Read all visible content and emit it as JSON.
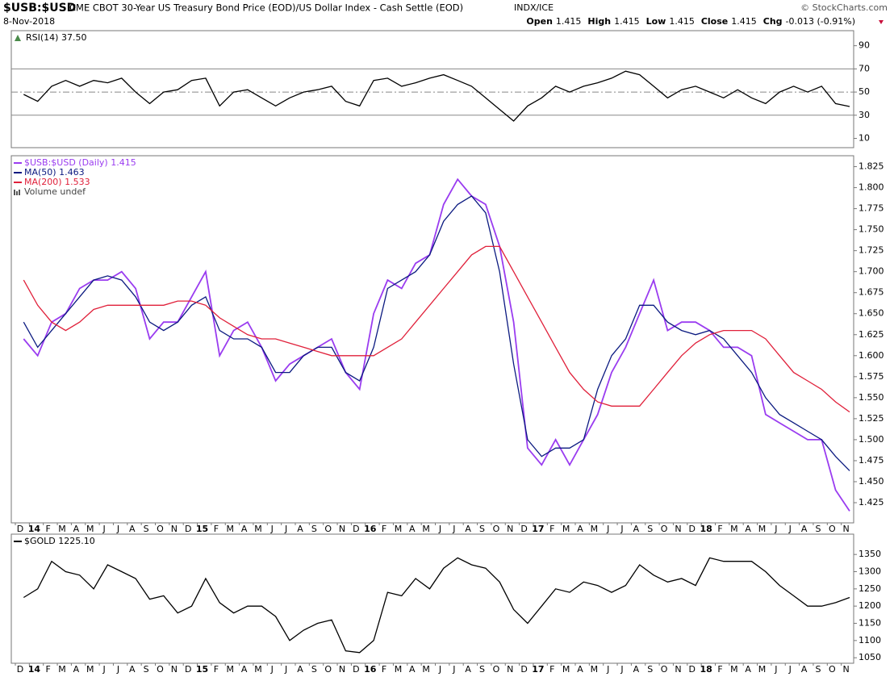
{
  "header": {
    "symbol": "$USB:$USD",
    "description": "CME CBOT 30-Year US Treasury Bond Price (EOD)/US Dollar Index - Cash Settle (EOD)",
    "exchange": "INDX/ICE",
    "source": "© StockCharts.com",
    "date": "8-Nov-2018",
    "quote": [
      {
        "label": "Open",
        "value": 1.415
      },
      {
        "label": "High",
        "value": 1.415
      },
      {
        "label": "Low",
        "value": 1.415
      },
      {
        "label": "Close",
        "value": 1.415
      },
      {
        "label": "Chg",
        "value": "-0.013 (-0.91%)"
      }
    ]
  },
  "chart_data": [
    {
      "type": "line",
      "title": "RSI(14) 37.50",
      "ylim": [
        2,
        103
      ],
      "yticks": [
        10,
        30,
        50,
        70,
        90
      ],
      "reference_lines": [
        30,
        50,
        70
      ],
      "series": [
        {
          "name": "RSI(14)",
          "color": "#000000",
          "values": [
            48,
            42,
            55,
            60,
            55,
            60,
            58,
            62,
            50,
            40,
            50,
            52,
            60,
            62,
            38,
            50,
            52,
            45,
            38,
            45,
            50,
            52,
            55,
            42,
            38,
            60,
            62,
            55,
            58,
            62,
            65,
            60,
            55,
            45,
            35,
            25,
            38,
            45,
            55,
            50,
            55,
            58,
            62,
            68,
            65,
            55,
            45,
            52,
            55,
            50,
            45,
            52,
            45,
            40,
            50,
            55,
            50,
            55,
            40,
            37.5
          ]
        }
      ]
    },
    {
      "type": "line",
      "ylim": [
        1.401,
        1.838
      ],
      "yticks": [
        1.425,
        {
          "value": 1.45,
          "label": "1.450"
        },
        1.475,
        {
          "value": 1.5,
          "label": "1.500"
        },
        1.525,
        {
          "value": 1.55,
          "label": "1.550"
        },
        1.575,
        {
          "value": 1.6,
          "label": "1.600"
        },
        1.625,
        {
          "value": 1.65,
          "label": "1.650"
        },
        1.675,
        {
          "value": 1.7,
          "label": "1.700"
        },
        1.725,
        {
          "value": 1.75,
          "label": "1.750"
        },
        1.775,
        {
          "value": 1.8,
          "label": "1.800"
        },
        1.825
      ],
      "categories": [
        "D",
        "14",
        "F",
        "M",
        "A",
        "M",
        "J",
        "J",
        "A",
        "S",
        "O",
        "N",
        "D",
        "15",
        "F",
        "M",
        "A",
        "M",
        "J",
        "J",
        "A",
        "S",
        "O",
        "N",
        "D",
        "16",
        "F",
        "M",
        "A",
        "M",
        "J",
        "J",
        "A",
        "S",
        "O",
        "N",
        "D",
        "17",
        "F",
        "M",
        "A",
        "M",
        "J",
        "J",
        "A",
        "S",
        "O",
        "N",
        "D",
        "18",
        "F",
        "M",
        "A",
        "M",
        "J",
        "J",
        "A",
        "S",
        "O",
        "N"
      ],
      "legend_extra": "Volume undef",
      "series": [
        {
          "name": "$USB:$USD (Daily) 1.415",
          "color": "#9a3cf0",
          "values": [
            1.62,
            1.6,
            1.64,
            1.65,
            1.68,
            1.69,
            1.69,
            1.7,
            1.68,
            1.62,
            1.64,
            1.64,
            1.67,
            1.7,
            1.6,
            1.63,
            1.64,
            1.61,
            1.57,
            1.59,
            1.6,
            1.61,
            1.62,
            1.58,
            1.56,
            1.65,
            1.69,
            1.68,
            1.71,
            1.72,
            1.78,
            1.81,
            1.79,
            1.78,
            1.73,
            1.64,
            1.49,
            1.47,
            1.5,
            1.47,
            1.5,
            1.53,
            1.58,
            1.61,
            1.65,
            1.69,
            1.63,
            1.64,
            1.64,
            1.63,
            1.61,
            1.61,
            1.6,
            1.53,
            1.52,
            1.51,
            1.5,
            1.5,
            1.44,
            1.415
          ]
        },
        {
          "name": "MA(50) 1.463",
          "color": "#0b1a80",
          "values": [
            1.64,
            1.61,
            1.63,
            1.65,
            1.67,
            1.69,
            1.695,
            1.69,
            1.67,
            1.64,
            1.63,
            1.64,
            1.66,
            1.67,
            1.63,
            1.62,
            1.62,
            1.61,
            1.58,
            1.58,
            1.6,
            1.61,
            1.61,
            1.58,
            1.57,
            1.61,
            1.68,
            1.69,
            1.7,
            1.72,
            1.76,
            1.78,
            1.79,
            1.77,
            1.7,
            1.59,
            1.5,
            1.48,
            1.49,
            1.49,
            1.5,
            1.56,
            1.6,
            1.62,
            1.66,
            1.66,
            1.64,
            1.63,
            1.625,
            1.63,
            1.62,
            1.6,
            1.58,
            1.55,
            1.53,
            1.52,
            1.51,
            1.5,
            1.48,
            1.463
          ]
        },
        {
          "name": "MA(200) 1.533",
          "color": "#e0203a",
          "values": [
            1.69,
            1.66,
            1.64,
            1.63,
            1.64,
            1.655,
            1.66,
            1.66,
            1.66,
            1.66,
            1.66,
            1.665,
            1.665,
            1.66,
            1.645,
            1.635,
            1.625,
            1.62,
            1.62,
            1.615,
            1.61,
            1.605,
            1.6,
            1.6,
            1.6,
            1.6,
            1.61,
            1.62,
            1.64,
            1.66,
            1.68,
            1.7,
            1.72,
            1.73,
            1.73,
            1.7,
            1.67,
            1.64,
            1.61,
            1.58,
            1.56,
            1.545,
            1.54,
            1.54,
            1.54,
            1.56,
            1.58,
            1.6,
            1.615,
            1.625,
            1.63,
            1.63,
            1.63,
            1.62,
            1.6,
            1.58,
            1.57,
            1.56,
            1.545,
            1.533
          ]
        }
      ]
    },
    {
      "type": "line",
      "ylim": [
        1034,
        1409
      ],
      "yticks": [
        1050,
        1100,
        1150,
        1200,
        1250,
        1300,
        1350
      ],
      "categories": [
        "D",
        "14",
        "F",
        "M",
        "A",
        "M",
        "J",
        "J",
        "A",
        "S",
        "O",
        "N",
        "D",
        "15",
        "F",
        "M",
        "A",
        "M",
        "J",
        "J",
        "A",
        "S",
        "O",
        "N",
        "D",
        "16",
        "F",
        "M",
        "A",
        "M",
        "J",
        "J",
        "A",
        "S",
        "O",
        "N",
        "D",
        "17",
        "F",
        "M",
        "A",
        "M",
        "J",
        "J",
        "A",
        "S",
        "O",
        "N",
        "D",
        "18",
        "F",
        "M",
        "A",
        "M",
        "J",
        "J",
        "A",
        "S",
        "O",
        "N"
      ],
      "series": [
        {
          "name": "$GOLD 1225.10",
          "color": "#000000",
          "values": [
            1225,
            1250,
            1330,
            1300,
            1290,
            1250,
            1320,
            1300,
            1280,
            1220,
            1230,
            1180,
            1200,
            1280,
            1210,
            1180,
            1200,
            1200,
            1170,
            1100,
            1130,
            1150,
            1160,
            1070,
            1065,
            1100,
            1240,
            1230,
            1280,
            1250,
            1310,
            1340,
            1320,
            1310,
            1270,
            1190,
            1150,
            1200,
            1250,
            1240,
            1270,
            1260,
            1240,
            1260,
            1320,
            1290,
            1270,
            1280,
            1260,
            1340,
            1330,
            1330,
            1330,
            1300,
            1260,
            1230,
            1200,
            1200,
            1210,
            1225.1
          ]
        }
      ]
    }
  ]
}
